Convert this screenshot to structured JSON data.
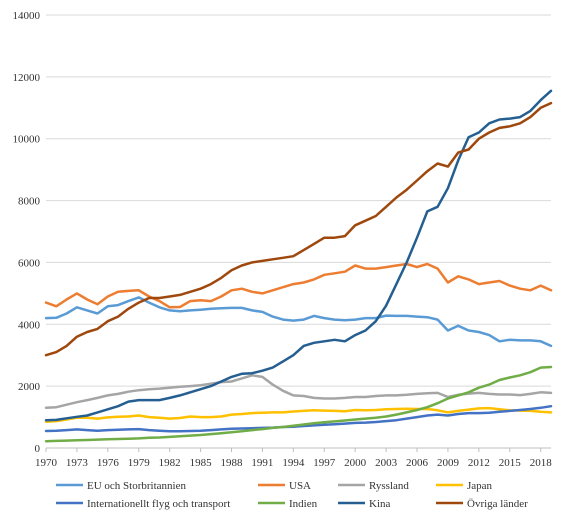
{
  "chart_data": {
    "type": "line",
    "title": "",
    "xlabel": "",
    "ylabel": "",
    "ylim": [
      0,
      14000
    ],
    "yticks": [
      0,
      2000,
      4000,
      6000,
      8000,
      10000,
      12000,
      14000
    ],
    "xticks": [
      1970,
      1973,
      1976,
      1979,
      1982,
      1985,
      1988,
      1991,
      1994,
      1997,
      2000,
      2003,
      2006,
      2009,
      2012,
      2015,
      2018
    ],
    "grid": true,
    "legend_position": "bottom",
    "x": [
      1970,
      1971,
      1972,
      1973,
      1974,
      1975,
      1976,
      1977,
      1978,
      1979,
      1980,
      1981,
      1982,
      1983,
      1984,
      1985,
      1986,
      1987,
      1988,
      1989,
      1990,
      1991,
      1992,
      1993,
      1994,
      1995,
      1996,
      1997,
      1998,
      1999,
      2000,
      2001,
      2002,
      2003,
      2004,
      2005,
      2006,
      2007,
      2008,
      2009,
      2010,
      2011,
      2012,
      2013,
      2014,
      2015,
      2016,
      2017,
      2018,
      2019
    ],
    "series": [
      {
        "name": "EU och Storbritannien",
        "color": "#5b9bd5",
        "values": [
          4200,
          4210,
          4350,
          4550,
          4450,
          4350,
          4580,
          4620,
          4750,
          4870,
          4700,
          4550,
          4450,
          4420,
          4450,
          4470,
          4500,
          4520,
          4530,
          4530,
          4450,
          4400,
          4250,
          4150,
          4120,
          4150,
          4270,
          4200,
          4150,
          4130,
          4150,
          4200,
          4200,
          4280,
          4270,
          4270,
          4250,
          4230,
          4150,
          3800,
          3950,
          3800,
          3750,
          3650,
          3450,
          3500,
          3480,
          3480,
          3450,
          3300
        ]
      },
      {
        "name": "USA",
        "color": "#ed7d31",
        "values": [
          4700,
          4580,
          4800,
          5000,
          4800,
          4650,
          4900,
          5050,
          5080,
          5100,
          4900,
          4750,
          4550,
          4560,
          4750,
          4780,
          4750,
          4900,
          5100,
          5150,
          5050,
          5000,
          5100,
          5200,
          5300,
          5350,
          5450,
          5600,
          5650,
          5700,
          5900,
          5800,
          5800,
          5850,
          5900,
          5950,
          5850,
          5950,
          5800,
          5350,
          5550,
          5450,
          5300,
          5350,
          5400,
          5250,
          5150,
          5100,
          5250,
          5100
        ]
      },
      {
        "name": "Ryssland",
        "color": "#a5a5a5",
        "values": [
          1300,
          1320,
          1400,
          1480,
          1550,
          1620,
          1700,
          1750,
          1820,
          1870,
          1900,
          1920,
          1950,
          1980,
          2000,
          2030,
          2080,
          2130,
          2150,
          2250,
          2350,
          2300,
          2050,
          1850,
          1700,
          1680,
          1620,
          1600,
          1600,
          1620,
          1650,
          1650,
          1680,
          1700,
          1700,
          1720,
          1750,
          1770,
          1780,
          1650,
          1720,
          1760,
          1780,
          1750,
          1730,
          1730,
          1710,
          1750,
          1800,
          1780
        ]
      },
      {
        "name": "Japan",
        "color": "#ffc000",
        "values": [
          850,
          870,
          920,
          980,
          980,
          950,
          990,
          1010,
          1020,
          1050,
          1000,
          980,
          950,
          970,
          1020,
          1000,
          1000,
          1020,
          1080,
          1100,
          1130,
          1140,
          1150,
          1150,
          1180,
          1200,
          1220,
          1210,
          1200,
          1190,
          1230,
          1220,
          1230,
          1250,
          1260,
          1270,
          1260,
          1260,
          1220,
          1150,
          1200,
          1240,
          1280,
          1290,
          1250,
          1220,
          1210,
          1200,
          1170,
          1150
        ]
      },
      {
        "name": "Internationellt flyg och transport",
        "color": "#4472c4",
        "values": [
          550,
          560,
          580,
          600,
          580,
          560,
          580,
          590,
          600,
          610,
          580,
          560,
          540,
          540,
          550,
          560,
          580,
          600,
          620,
          630,
          640,
          650,
          660,
          680,
          690,
          710,
          730,
          750,
          770,
          790,
          810,
          820,
          840,
          870,
          900,
          950,
          1000,
          1050,
          1080,
          1050,
          1100,
          1130,
          1130,
          1140,
          1170,
          1200,
          1230,
          1260,
          1300,
          1350
        ]
      },
      {
        "name": "Indien",
        "color": "#70ad47",
        "values": [
          220,
          230,
          240,
          250,
          260,
          270,
          280,
          290,
          300,
          310,
          330,
          340,
          360,
          380,
          400,
          420,
          450,
          480,
          510,
          540,
          580,
          610,
          650,
          680,
          720,
          760,
          800,
          830,
          860,
          890,
          920,
          950,
          980,
          1020,
          1080,
          1150,
          1230,
          1320,
          1450,
          1600,
          1700,
          1800,
          1950,
          2050,
          2200,
          2280,
          2350,
          2450,
          2600,
          2620
        ]
      },
      {
        "name": "Kina",
        "color": "#255e91",
        "values": [
          900,
          910,
          960,
          1010,
          1050,
          1150,
          1250,
          1350,
          1500,
          1550,
          1550,
          1550,
          1620,
          1700,
          1800,
          1900,
          2000,
          2150,
          2300,
          2400,
          2420,
          2500,
          2600,
          2800,
          3000,
          3300,
          3400,
          3450,
          3500,
          3450,
          3650,
          3800,
          4100,
          4600,
          5300,
          6000,
          6800,
          7650,
          7800,
          8400,
          9300,
          10050,
          10200,
          10500,
          10620,
          10650,
          10700,
          10900,
          11250,
          11550
        ]
      },
      {
        "name": "Övriga länder",
        "color": "#9e480e",
        "values": [
          3000,
          3100,
          3300,
          3600,
          3750,
          3850,
          4100,
          4250,
          4500,
          4700,
          4850,
          4850,
          4900,
          4950,
          5050,
          5150,
          5300,
          5500,
          5750,
          5900,
          6000,
          6050,
          6100,
          6150,
          6200,
          6400,
          6600,
          6800,
          6800,
          6850,
          7200,
          7350,
          7500,
          7800,
          8100,
          8350,
          8650,
          8950,
          9200,
          9100,
          9550,
          9650,
          10000,
          10200,
          10350,
          10400,
          10500,
          10700,
          11000,
          11150
        ]
      }
    ]
  }
}
